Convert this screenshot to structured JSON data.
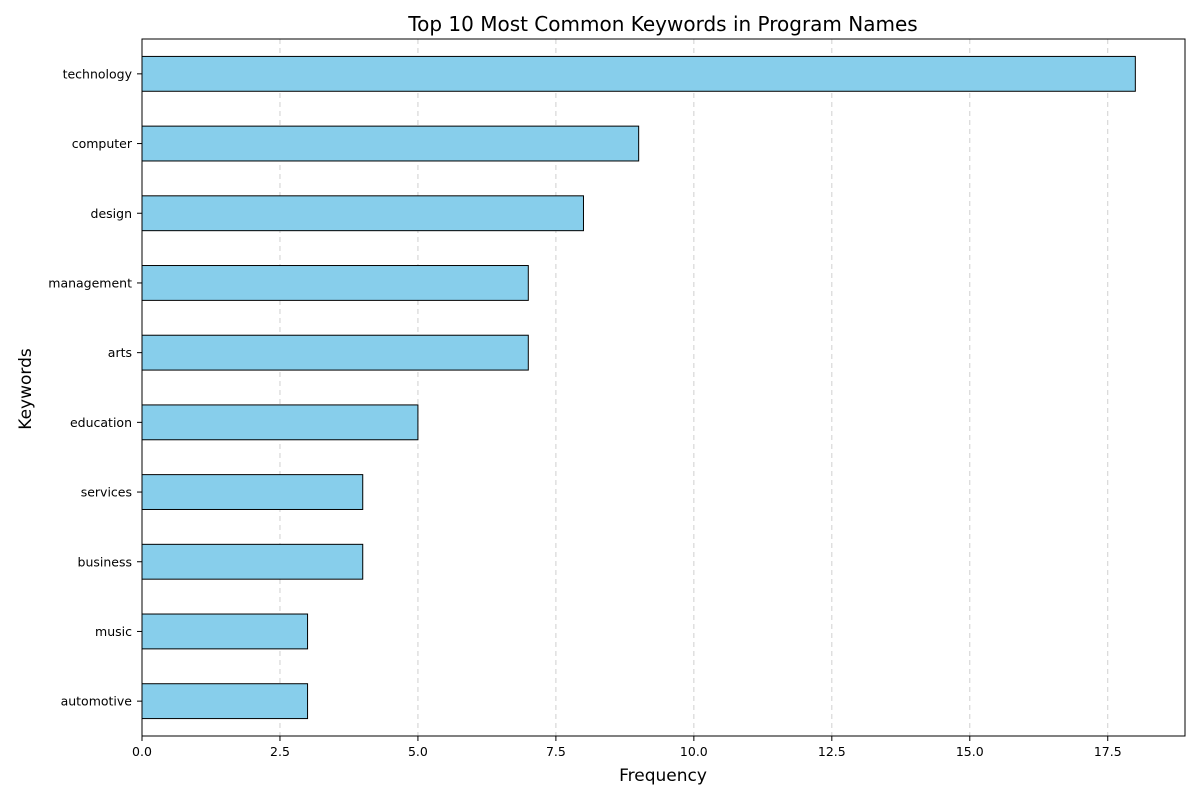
{
  "chart_data": {
    "type": "bar",
    "orientation": "horizontal",
    "title": "Top 10 Most Common Keywords in Program Names",
    "xlabel": "Frequency",
    "ylabel": "Keywords",
    "categories": [
      "technology",
      "computer",
      "design",
      "management",
      "arts",
      "education",
      "services",
      "business",
      "music",
      "automotive"
    ],
    "values": [
      18,
      9,
      8,
      7,
      7,
      5,
      4,
      4,
      3,
      3
    ],
    "xlim": [
      0,
      18.9
    ],
    "xticks": [
      "0.0",
      "2.5",
      "5.0",
      "7.5",
      "10.0",
      "12.5",
      "15.0",
      "17.5"
    ],
    "grid": "x-dashed",
    "bar_color": "#87CEEB",
    "bar_edge_color": "#000000",
    "grid_color": "#d0d0d0"
  }
}
